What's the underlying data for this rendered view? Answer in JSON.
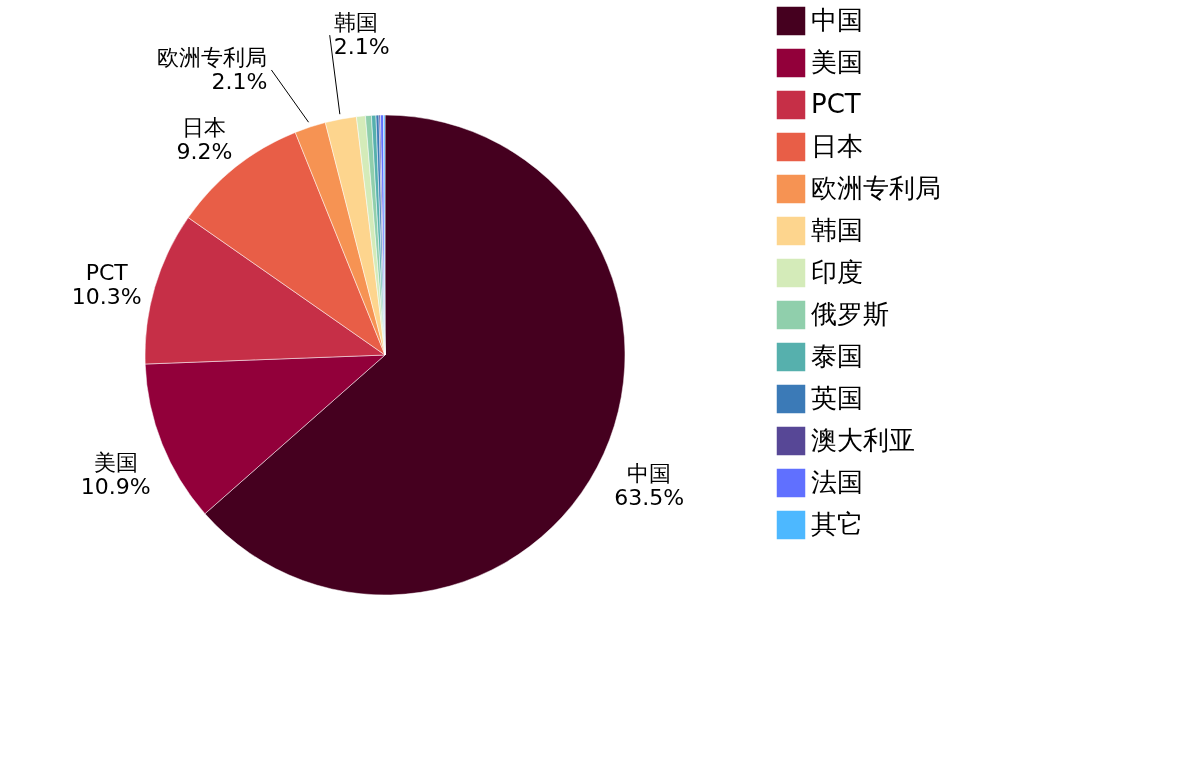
{
  "chart_data": {
    "type": "pie",
    "categories": [
      "中国",
      "美国",
      "PCT",
      "日本",
      "欧洲专利局",
      "韩国",
      "印度",
      "俄罗斯",
      "泰国",
      "英国",
      "澳大利亚",
      "法国",
      "其它"
    ],
    "values": [
      63.5,
      10.9,
      10.3,
      9.2,
      2.1,
      2.1,
      0.6,
      0.4,
      0.3,
      0.2,
      0.1,
      0.2,
      0.1
    ],
    "value_labels": [
      "63.5%",
      "10.9%",
      "10.3%",
      "9.2%",
      "2.1%",
      "2.1%",
      null,
      null,
      null,
      null,
      null,
      null,
      null
    ],
    "colors": [
      "#45001f",
      "#92003a",
      "#c62f47",
      "#e85e47",
      "#f69353",
      "#fdd58e",
      "#d4ebb9",
      "#90cfac",
      "#56b0ad",
      "#3b7ab7",
      "#574796",
      "#6070ff",
      "#4db8ff"
    ],
    "legend": "top right"
  }
}
